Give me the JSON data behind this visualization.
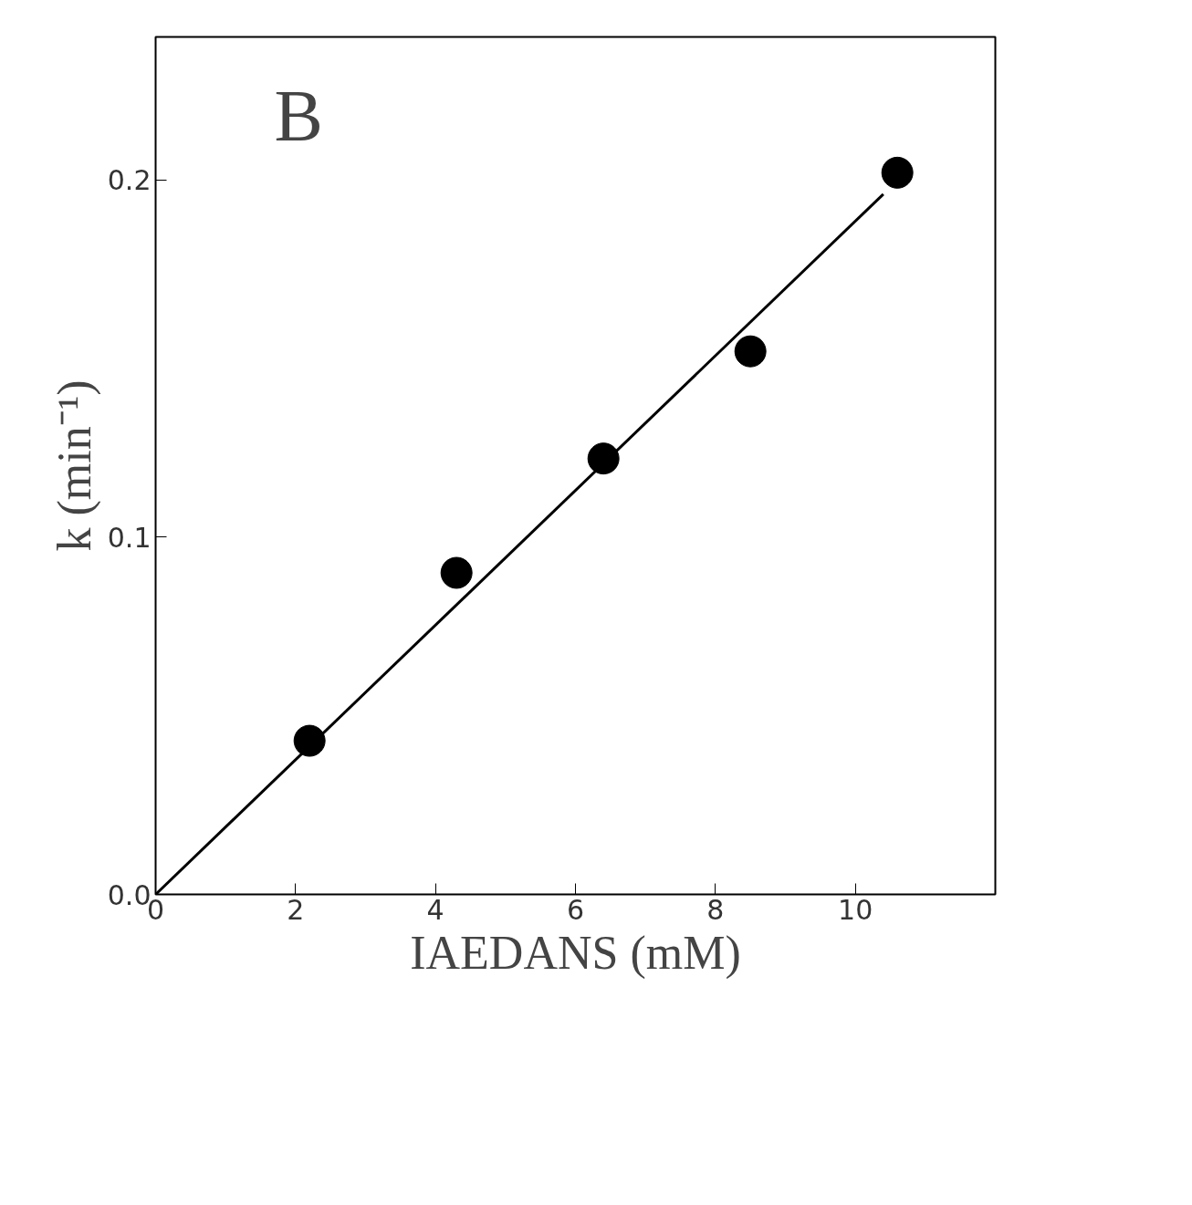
{
  "chart_data": {
    "type": "scatter",
    "xlabel": "IAEDANS (mM)",
    "ylabel": "k (min⁻¹)",
    "annotations": [
      "B"
    ],
    "xlim": [
      0,
      12
    ],
    "ylim": [
      0,
      0.24
    ],
    "xticks": [
      0,
      2,
      4,
      6,
      8,
      10
    ],
    "yticks": [
      {
        "value": 0,
        "label": "0.0"
      },
      0.1,
      0.2
    ],
    "grid": false,
    "marker": "circle",
    "series": [
      {
        "color": "#000000",
        "x": [
          2.2,
          4.3,
          6.4,
          8.5,
          10.6
        ],
        "values": [
          0.043,
          0.09,
          0.122,
          0.152,
          0.202
        ]
      },
      {
        "type": "line",
        "color": "#000000",
        "marker": "none",
        "line_style": "solid",
        "x": [
          0,
          10.4
        ],
        "values": [
          0,
          0.196
        ]
      }
    ]
  }
}
